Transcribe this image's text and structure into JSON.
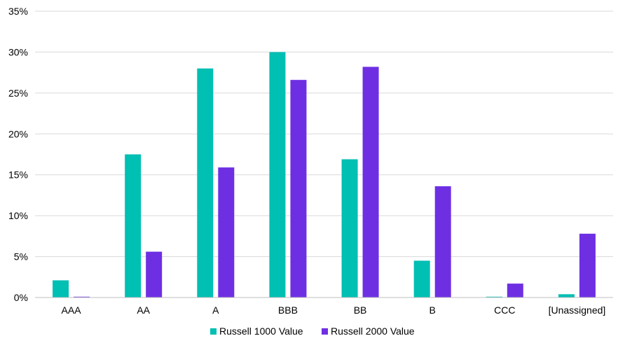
{
  "chart_data": {
    "type": "bar",
    "title": "",
    "xlabel": "",
    "ylabel": "",
    "categories": [
      "AAA",
      "AA",
      "A",
      "BBB",
      "BB",
      "B",
      "CCC",
      "[Unassigned]"
    ],
    "series": [
      {
        "name": "Russell 1000 Value",
        "color": "#00BFB3",
        "values": [
          2.1,
          17.5,
          28.0,
          30.0,
          16.9,
          4.5,
          0.1,
          0.4
        ]
      },
      {
        "name": "Russell 2000 Value",
        "color": "#6E2FE3",
        "values": [
          0.1,
          5.6,
          15.9,
          26.6,
          28.2,
          13.6,
          1.7,
          7.8
        ]
      }
    ],
    "ylim": [
      0,
      35
    ],
    "yticks": [
      "0%",
      "5%",
      "10%",
      "15%",
      "20%",
      "25%",
      "30%",
      "35%"
    ],
    "ytick_values": [
      0,
      5,
      10,
      15,
      20,
      25,
      30,
      35
    ],
    "grid": true,
    "legend": "bottom-center"
  }
}
